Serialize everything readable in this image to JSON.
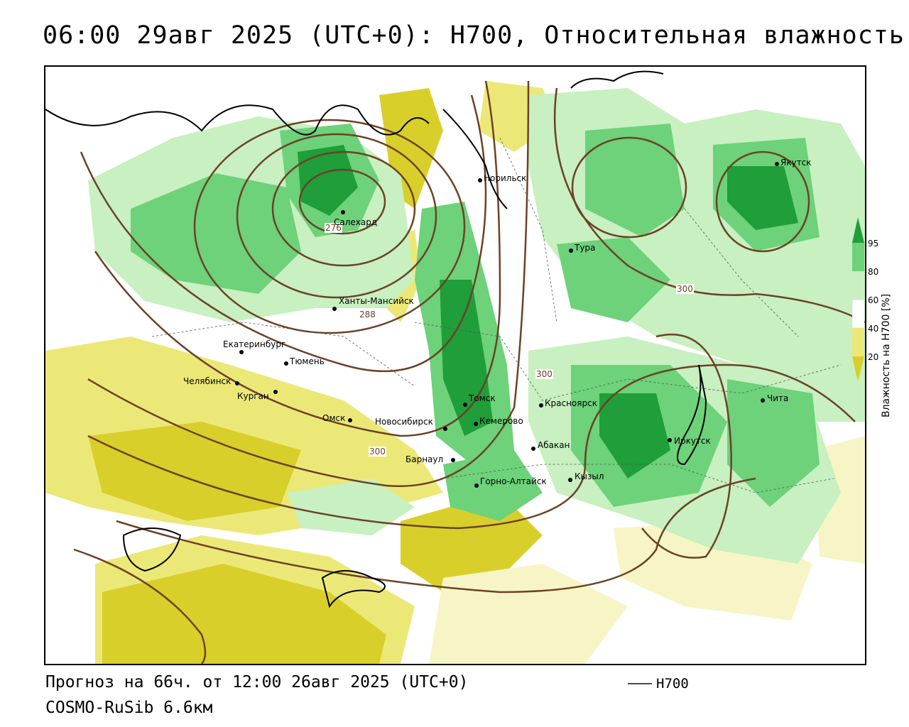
{
  "header": {
    "title": "06:00 29авг 2025 (UTC+0): H700, Относительная влажность"
  },
  "footer": {
    "forecast": "Прогноз на 66ч. от 12:00 26авг 2025 (UTC+0)",
    "model": "COSMO-RuSib 6.6км"
  },
  "legend": {
    "line_label": "H700",
    "line_color": "#6b4226"
  },
  "colorbar": {
    "title": "Влажность на H700 [%]",
    "ticks": [
      "95",
      "80",
      "60",
      "40",
      "20"
    ],
    "colors": {
      "very_dry": "#d9cf2a",
      "dry": "#ece878",
      "moderate_dry": "#f7f5c5",
      "neutral": "#ffffff",
      "moist": "#c8f0c0",
      "wet": "#6dd27a",
      "very_wet": "#1f9e3a"
    }
  },
  "cities": [
    {
      "name": "Норильск"
    },
    {
      "name": "Якутск"
    },
    {
      "name": "Салехард"
    },
    {
      "name": "Тура"
    },
    {
      "name": "Ханты-Мансийск"
    },
    {
      "name": "Екатеринбург"
    },
    {
      "name": "Тюмень"
    },
    {
      "name": "Челябинск"
    },
    {
      "name": "Курган"
    },
    {
      "name": "Омск"
    },
    {
      "name": "Новосибирск"
    },
    {
      "name": "Томск"
    },
    {
      "name": "Кемерово"
    },
    {
      "name": "Барнаул"
    },
    {
      "name": "Горно-Алтайск"
    },
    {
      "name": "Красноярск"
    },
    {
      "name": "Абакан"
    },
    {
      "name": "Кызыл"
    },
    {
      "name": "Иркутск"
    },
    {
      "name": "Чита"
    }
  ],
  "isolines": [
    {
      "label": "276"
    },
    {
      "label": "288"
    },
    {
      "label": "300"
    },
    {
      "label": "300"
    },
    {
      "label": "300"
    }
  ]
}
